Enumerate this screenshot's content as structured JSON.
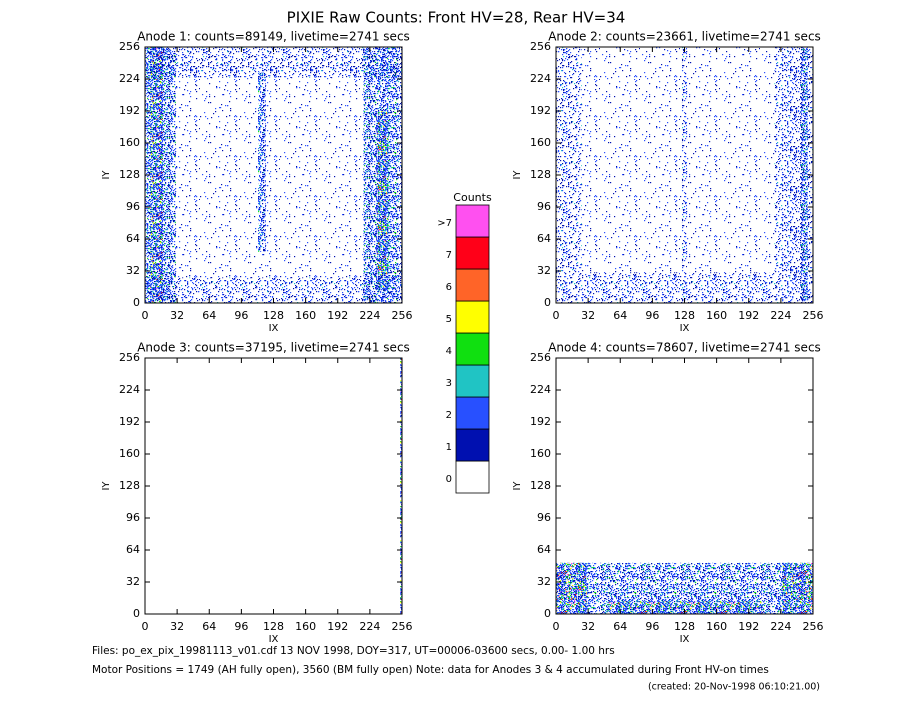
{
  "title": "PIXIE Raw Counts:  Front HV=28, Rear HV=34",
  "panels": [
    {
      "title": "Anode 1: counts=89149, livetime=2741 secs",
      "xlabel": "IX",
      "ylabel": "IY",
      "xlim": [
        0,
        256
      ],
      "ylim": [
        0,
        256
      ],
      "xticks": [
        0,
        32,
        64,
        96,
        128,
        160,
        192,
        224,
        256
      ],
      "yticks": [
        0,
        32,
        64,
        96,
        128,
        160,
        192,
        224,
        256
      ]
    },
    {
      "title": "Anode 2: counts=23661, livetime=2741 secs",
      "xlabel": "IX",
      "ylabel": "IY",
      "xlim": [
        0,
        256
      ],
      "ylim": [
        0,
        256
      ],
      "xticks": [
        0,
        32,
        64,
        96,
        128,
        160,
        192,
        224,
        256
      ],
      "yticks": [
        0,
        32,
        64,
        96,
        128,
        160,
        192,
        224,
        256
      ]
    },
    {
      "title": "Anode 3: counts=37195, livetime=2741 secs",
      "xlabel": "IX",
      "ylabel": "IY",
      "xlim": [
        0,
        256
      ],
      "ylim": [
        0,
        256
      ],
      "xticks": [
        0,
        32,
        64,
        96,
        128,
        160,
        192,
        224,
        256
      ],
      "yticks": [
        0,
        32,
        64,
        96,
        128,
        160,
        192,
        224,
        256
      ]
    },
    {
      "title": "Anode 4: counts=78607, livetime=2741 secs",
      "xlabel": "IX",
      "ylabel": "IY",
      "xlim": [
        0,
        256
      ],
      "ylim": [
        0,
        256
      ],
      "xticks": [
        0,
        32,
        64,
        96,
        128,
        160,
        192,
        224,
        256
      ],
      "yticks": [
        0,
        32,
        64,
        96,
        128,
        160,
        192,
        224,
        256
      ]
    }
  ],
  "colorbar": {
    "title": "Counts",
    "levels": [
      {
        "label": "0",
        "color": "#ffffff"
      },
      {
        "label": "1",
        "color": "#0010b0"
      },
      {
        "label": "2",
        "color": "#2850ff"
      },
      {
        "label": "3",
        "color": "#20c4c4"
      },
      {
        "label": "4",
        "color": "#10e010"
      },
      {
        "label": "5",
        "color": "#ffff00"
      },
      {
        "label": "6",
        "color": "#ff6428"
      },
      {
        "label": "7",
        "color": "#ff0018"
      },
      {
        "label": ">7",
        "color": "#ff50f0"
      }
    ]
  },
  "footer": {
    "files": "Files: po_ex_pix_19981113_v01.cdf    13 NOV 1998, DOY=317, UT=00006-03600 secs,  0.00- 1.00 hrs",
    "motor": "Motor Positions = 1749 (AH fully open), 3560 (BM fully open)    Note: data for Anodes 3 & 4 accumulated during Front HV-on times",
    "created": "(created: 20-Nov-1998 06:10:21.00)"
  }
}
